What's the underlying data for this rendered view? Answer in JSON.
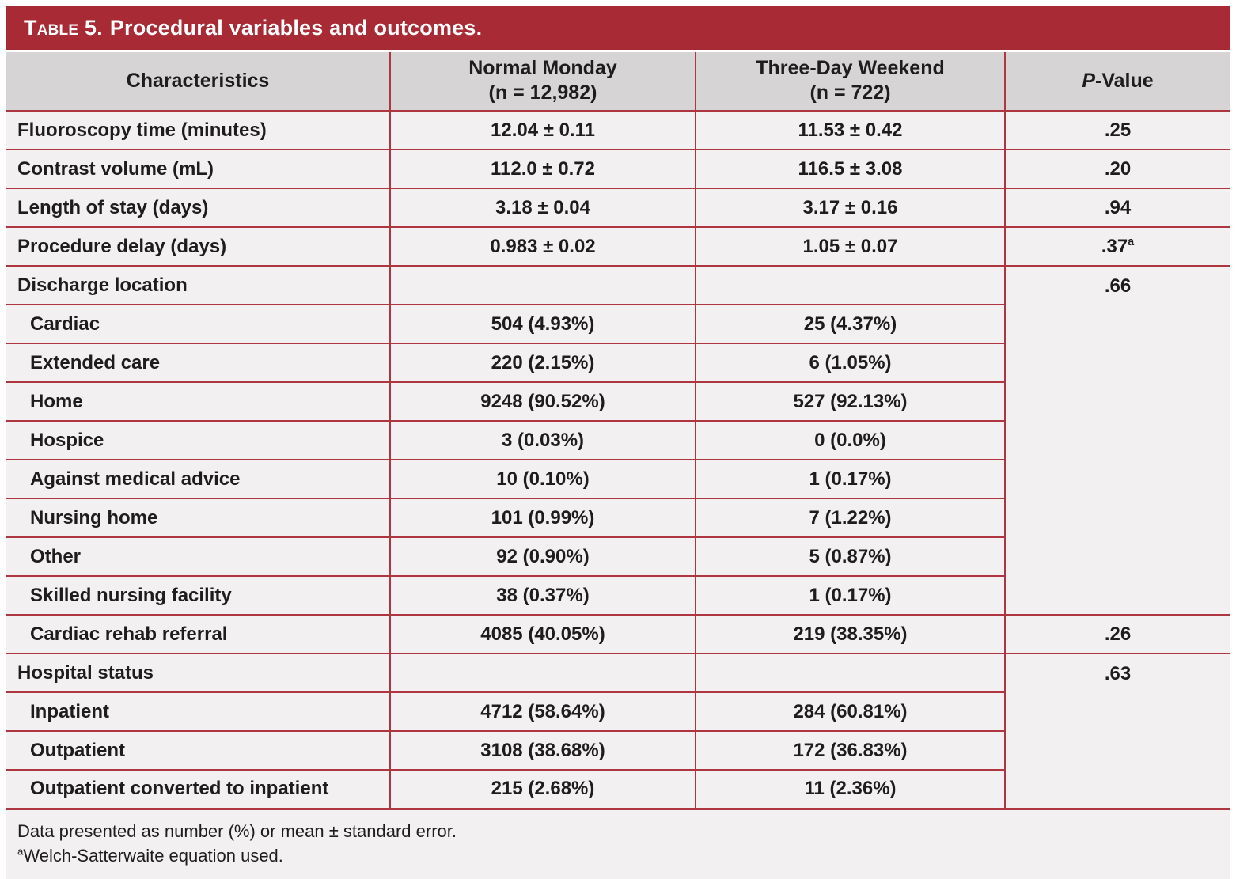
{
  "title": {
    "prefix": "Table 5.",
    "rest": "Procedural variables and outcomes."
  },
  "colors": {
    "brand_red": "#a72a35",
    "border_red": "#ae3640",
    "header_gray": "#d6d4d5",
    "row_background": "#f2f0f1",
    "text": "#1e1c1d"
  },
  "table": {
    "headers": {
      "characteristics": "Characteristics",
      "monday": {
        "label": "Normal Monday",
        "sub": "(n = 12,982)"
      },
      "weekend": {
        "label": "Three-Day Weekend",
        "sub": "(n = 722)"
      },
      "pvalue": {
        "italic": "P",
        "rest": "-Value"
      }
    },
    "rows": [
      {
        "label": "Fluoroscopy time (minutes)",
        "monday": "12.04 ± 0.11",
        "weekend": "11.53 ± 0.42",
        "p": ".25"
      },
      {
        "label": "Contrast volume (mL)",
        "monday": "112.0 ± 0.72",
        "weekend": "116.5 ± 3.08",
        "p": ".20"
      },
      {
        "label": "Length of stay (days)",
        "monday": "3.18 ± 0.04",
        "weekend": "3.17 ± 0.16",
        "p": ".94"
      },
      {
        "label": "Procedure delay (days)",
        "monday": "0.983 ± 0.02",
        "weekend": "1.05 ± 0.07",
        "p": ".37",
        "p_sup": "a"
      },
      {
        "label": "Discharge location",
        "monday": "",
        "weekend": "",
        "p": ".66"
      },
      {
        "label": "Cardiac",
        "monday": "504 (4.93%)",
        "weekend": "25 (4.37%)"
      },
      {
        "label": "Extended care",
        "monday": "220 (2.15%)",
        "weekend": "6 (1.05%)"
      },
      {
        "label": "Home",
        "monday": "9248 (90.52%)",
        "weekend": "527 (92.13%)"
      },
      {
        "label": "Hospice",
        "monday": "3 (0.03%)",
        "weekend": "0 (0.0%)"
      },
      {
        "label": "Against medical advice",
        "monday": "10 (0.10%)",
        "weekend": "1 (0.17%)"
      },
      {
        "label": "Nursing home",
        "monday": "101 (0.99%)",
        "weekend": "7 (1.22%)"
      },
      {
        "label": "Other",
        "monday": "92 (0.90%)",
        "weekend": "5 (0.87%)"
      },
      {
        "label": "Skilled nursing facility",
        "monday": "38 (0.37%)",
        "weekend": "1 (0.17%)"
      },
      {
        "label": "Cardiac rehab referral",
        "monday": "4085 (40.05%)",
        "weekend": "219 (38.35%)",
        "p": ".26"
      },
      {
        "label": "Hospital status",
        "monday": "",
        "weekend": "",
        "p": ".63"
      },
      {
        "label": "Inpatient",
        "monday": "4712 (58.64%)",
        "weekend": "284 (60.81%)"
      },
      {
        "label": "Outpatient",
        "monday": "3108 (38.68%)",
        "weekend": "172 (36.83%)"
      },
      {
        "label": "Outpatient converted to inpatient",
        "monday": "215 (2.68%)",
        "weekend": "11 (2.36%)"
      }
    ]
  },
  "footer": {
    "line1": "Data presented as number (%) or mean ± standard error.",
    "marker": "a",
    "line2": "Welch-Satterwaite equation used."
  }
}
